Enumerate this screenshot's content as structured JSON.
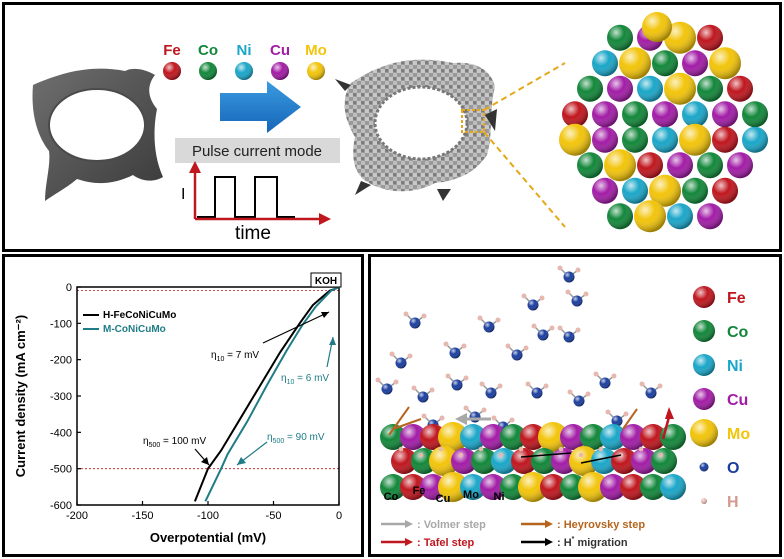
{
  "top": {
    "elements": [
      {
        "label": "Fe",
        "color": "#c0161e"
      },
      {
        "label": "Co",
        "color": "#12873a"
      },
      {
        "label": "Ni",
        "color": "#1aa6c8"
      },
      {
        "label": "Cu",
        "color": "#a21ca6"
      },
      {
        "label": "Mo",
        "color": "#f2c40a"
      }
    ],
    "mode_label": "Pulse current mode",
    "axis_i": "I",
    "axis_time": "time"
  },
  "chart_data": {
    "type": "line",
    "xlabel": "Overpotential (mV)",
    "ylabel": "Current density (mA cm⁻²)",
    "xlim": [
      -200,
      0
    ],
    "ylim": [
      -600,
      0
    ],
    "xticks": [
      -200,
      -150,
      -100,
      -50,
      0
    ],
    "yticks": [
      0,
      -100,
      -200,
      -300,
      -400,
      -500,
      -600
    ],
    "badge": "KOH",
    "series": [
      {
        "name": "H-FeCoNiCuMo",
        "color": "#000000",
        "x": [
          0,
          -3,
          -7,
          -12,
          -20,
          -30,
          -45,
          -60,
          -75,
          -90,
          -100,
          -110
        ],
        "y": [
          0,
          -5,
          -10,
          -25,
          -50,
          -100,
          -180,
          -270,
          -360,
          -450,
          -500,
          -590
        ]
      },
      {
        "name": "M-CoNiCuMo",
        "color": "#1f7c86",
        "x": [
          0,
          -3,
          -6,
          -10,
          -18,
          -28,
          -40,
          -55,
          -70,
          -85,
          -90,
          -102
        ],
        "y": [
          0,
          -5,
          -10,
          -25,
          -55,
          -105,
          -175,
          -270,
          -370,
          -460,
          -500,
          -590
        ]
      }
    ],
    "refs": [
      -10,
      -500
    ],
    "annotations": [
      {
        "pre": "η",
        "sub": "10",
        "post": " = 7 mV"
      },
      {
        "pre": "η",
        "sub": "10",
        "post": " = 6 mV"
      },
      {
        "pre": "η",
        "sub": "500",
        "post": " = 100 mV"
      },
      {
        "pre": "η",
        "sub": "500",
        "post": " = 90 mV"
      }
    ]
  },
  "mechanism": {
    "legend": [
      {
        "label": "Fe",
        "color": "#c0161e"
      },
      {
        "label": "Co",
        "color": "#12873a"
      },
      {
        "label": "Ni",
        "color": "#1aa6c8"
      },
      {
        "label": "Cu",
        "color": "#a21ca6"
      },
      {
        "label": "Mo",
        "color": "#f2c40a"
      },
      {
        "label": "O",
        "color": "#1a3d9e"
      },
      {
        "label": "H",
        "color": "#e6b8b0"
      }
    ],
    "surface_labels": [
      "Co",
      "Fe",
      "Cu",
      "Mo",
      "Ni"
    ],
    "steps": [
      {
        "label": ": Volmer step",
        "color": "#a8a8a8"
      },
      {
        "label": ": Heyrovsky  step",
        "color": "#b5651d"
      },
      {
        "label": ": Tafel step",
        "color": "#c0161e"
      },
      {
        "pre": ": H",
        "sup": "*",
        "post": " migration",
        "color": "#000000"
      }
    ]
  }
}
